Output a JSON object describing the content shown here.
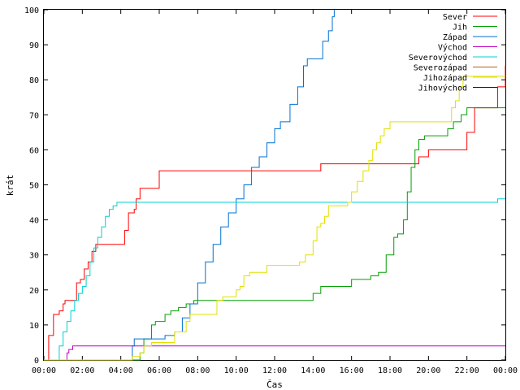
{
  "chart_data": {
    "type": "line",
    "xlabel": "Čas",
    "ylabel": "krát",
    "xlim": [
      0,
      24
    ],
    "ylim": [
      0,
      100
    ],
    "x_ticks": [
      {
        "v": 0,
        "label": "00:00"
      },
      {
        "v": 2,
        "label": "02:00"
      },
      {
        "v": 4,
        "label": "04:00"
      },
      {
        "v": 6,
        "label": "06:00"
      },
      {
        "v": 8,
        "label": "08:00"
      },
      {
        "v": 10,
        "label": "10:00"
      },
      {
        "v": 12,
        "label": "12:00"
      },
      {
        "v": 14,
        "label": "14:00"
      },
      {
        "v": 16,
        "label": "16:00"
      },
      {
        "v": 18,
        "label": "18:00"
      },
      {
        "v": 20,
        "label": "20:00"
      },
      {
        "v": 22,
        "label": "22:00"
      },
      {
        "v": 24,
        "label": "00:00"
      }
    ],
    "y_ticks": [
      0,
      10,
      20,
      30,
      40,
      50,
      60,
      70,
      80,
      90,
      100
    ],
    "grid": false,
    "legend_position": "top-right",
    "series": [
      {
        "name": "Sever",
        "color": "#ff0000",
        "step": true,
        "points": [
          [
            0,
            0
          ],
          [
            0.25,
            7
          ],
          [
            0.5,
            13
          ],
          [
            0.8,
            14
          ],
          [
            1.0,
            16
          ],
          [
            1.1,
            17
          ],
          [
            1.6,
            17
          ],
          [
            1.7,
            22
          ],
          [
            1.9,
            23
          ],
          [
            2.1,
            26
          ],
          [
            2.3,
            28
          ],
          [
            2.5,
            31
          ],
          [
            2.7,
            33
          ],
          [
            3.0,
            33
          ],
          [
            4.0,
            33
          ],
          [
            4.2,
            37
          ],
          [
            4.4,
            42
          ],
          [
            4.7,
            43
          ],
          [
            4.8,
            46
          ],
          [
            5.0,
            49
          ],
          [
            5.8,
            49
          ],
          [
            6.0,
            54
          ],
          [
            14.2,
            54
          ],
          [
            14.4,
            56
          ],
          [
            19.0,
            56
          ],
          [
            19.5,
            58
          ],
          [
            20.0,
            60
          ],
          [
            21.8,
            60
          ],
          [
            22.0,
            65
          ],
          [
            22.4,
            72
          ],
          [
            23.0,
            72
          ],
          [
            23.6,
            78
          ],
          [
            24,
            84
          ]
        ]
      },
      {
        "name": "Jih",
        "color": "#00a000",
        "step": true,
        "points": [
          [
            0,
            0
          ],
          [
            4.9,
            0
          ],
          [
            5.0,
            2
          ],
          [
            5.2,
            6
          ],
          [
            5.6,
            10
          ],
          [
            5.8,
            11
          ],
          [
            6.3,
            13
          ],
          [
            6.6,
            14
          ],
          [
            7.0,
            15
          ],
          [
            7.4,
            16
          ],
          [
            7.8,
            17
          ],
          [
            13.6,
            17
          ],
          [
            14.0,
            19
          ],
          [
            14.4,
            21
          ],
          [
            15.6,
            21
          ],
          [
            16.0,
            23
          ],
          [
            16.8,
            23
          ],
          [
            17.0,
            24
          ],
          [
            17.4,
            25
          ],
          [
            17.8,
            30
          ],
          [
            18.2,
            35
          ],
          [
            18.4,
            36
          ],
          [
            18.7,
            40
          ],
          [
            18.9,
            48
          ],
          [
            19.1,
            55
          ],
          [
            19.3,
            60
          ],
          [
            19.5,
            63
          ],
          [
            19.8,
            64
          ],
          [
            20.7,
            64
          ],
          [
            21.0,
            66
          ],
          [
            21.3,
            68
          ],
          [
            21.7,
            70
          ],
          [
            22.0,
            72
          ],
          [
            24,
            72
          ]
        ]
      },
      {
        "name": "Západ",
        "color": "#0070d0",
        "step": true,
        "points": [
          [
            0,
            0
          ],
          [
            4.5,
            0
          ],
          [
            4.6,
            4
          ],
          [
            4.7,
            6
          ],
          [
            6.0,
            6
          ],
          [
            6.3,
            7
          ],
          [
            6.8,
            8
          ],
          [
            7.2,
            12
          ],
          [
            7.6,
            16
          ],
          [
            8.0,
            22
          ],
          [
            8.4,
            28
          ],
          [
            8.8,
            33
          ],
          [
            9.2,
            38
          ],
          [
            9.6,
            42
          ],
          [
            10.0,
            46
          ],
          [
            10.4,
            50
          ],
          [
            10.8,
            55
          ],
          [
            11.2,
            58
          ],
          [
            11.6,
            62
          ],
          [
            12.0,
            66
          ],
          [
            12.3,
            68
          ],
          [
            12.8,
            73
          ],
          [
            13.2,
            78
          ],
          [
            13.5,
            84
          ],
          [
            13.7,
            86
          ],
          [
            14.3,
            86
          ],
          [
            14.5,
            91
          ],
          [
            14.8,
            94
          ],
          [
            15.0,
            98
          ],
          [
            15.1,
            100
          ]
        ]
      },
      {
        "name": "Východ",
        "color": "#c000c0",
        "step": true,
        "points": [
          [
            0,
            0
          ],
          [
            1.1,
            0
          ],
          [
            1.2,
            2
          ],
          [
            1.3,
            3
          ],
          [
            1.5,
            4
          ],
          [
            24,
            4
          ]
        ]
      },
      {
        "name": "Severovýchod",
        "color": "#00d0d0",
        "step": true,
        "points": [
          [
            0,
            0
          ],
          [
            0.6,
            0
          ],
          [
            0.8,
            4
          ],
          [
            1.0,
            8
          ],
          [
            1.2,
            11
          ],
          [
            1.4,
            14
          ],
          [
            1.6,
            17
          ],
          [
            1.8,
            19
          ],
          [
            2.0,
            21
          ],
          [
            2.2,
            24
          ],
          [
            2.4,
            28
          ],
          [
            2.6,
            32
          ],
          [
            2.8,
            35
          ],
          [
            3.0,
            38
          ],
          [
            3.2,
            41
          ],
          [
            3.4,
            43
          ],
          [
            3.6,
            44
          ],
          [
            3.8,
            45
          ],
          [
            23.5,
            45
          ],
          [
            23.6,
            46
          ],
          [
            24,
            46
          ]
        ]
      },
      {
        "name": "Severozápad",
        "color": "#b06020",
        "step": true,
        "points": []
      },
      {
        "name": "Jihozápad",
        "color": "#e0e000",
        "step": true,
        "points": [
          [
            0,
            0
          ],
          [
            4.5,
            0
          ],
          [
            4.6,
            1
          ],
          [
            5.0,
            2
          ],
          [
            5.2,
            4
          ],
          [
            5.6,
            5
          ],
          [
            6.8,
            8
          ],
          [
            7.4,
            11
          ],
          [
            7.6,
            13
          ],
          [
            8.8,
            13
          ],
          [
            9.0,
            17
          ],
          [
            9.3,
            18
          ],
          [
            10.0,
            20
          ],
          [
            10.2,
            21
          ],
          [
            10.4,
            24
          ],
          [
            10.7,
            25
          ],
          [
            11.4,
            25
          ],
          [
            11.6,
            27
          ],
          [
            13.3,
            28
          ],
          [
            13.6,
            30
          ],
          [
            14.0,
            34
          ],
          [
            14.2,
            38
          ],
          [
            14.4,
            39
          ],
          [
            14.6,
            41
          ],
          [
            14.8,
            44
          ],
          [
            15.6,
            44
          ],
          [
            15.8,
            45
          ],
          [
            16.0,
            48
          ],
          [
            16.3,
            51
          ],
          [
            16.6,
            54
          ],
          [
            16.9,
            57
          ],
          [
            17.1,
            60
          ],
          [
            17.3,
            62
          ],
          [
            17.5,
            64
          ],
          [
            17.7,
            66
          ],
          [
            18.0,
            68
          ],
          [
            21.0,
            68
          ],
          [
            21.2,
            72
          ],
          [
            21.4,
            74
          ],
          [
            21.6,
            78
          ],
          [
            21.8,
            81
          ],
          [
            24,
            81
          ]
        ]
      },
      {
        "name": "Jihovýchod",
        "color": "#0000c0",
        "step": true,
        "points": []
      }
    ]
  }
}
